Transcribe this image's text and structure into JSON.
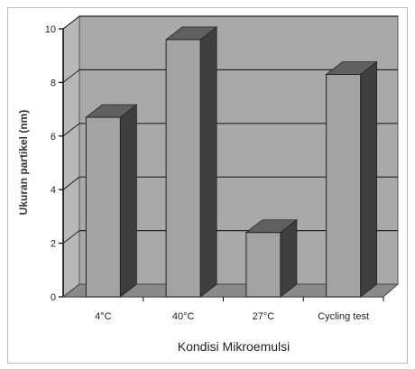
{
  "chart_data": {
    "type": "bar",
    "categories": [
      "4°C",
      "40°C",
      "27°C",
      "Cycling test"
    ],
    "values": [
      6.7,
      9.6,
      2.4,
      8.3
    ],
    "title": "",
    "xlabel": "Kondisi Mikroemulsi",
    "ylabel": "Ukuran partikel (nm)",
    "ylim": [
      0,
      10
    ],
    "yticks": [
      "0",
      "2",
      "4",
      "6",
      "8",
      "10"
    ],
    "grid": true,
    "legend": "none",
    "style": "3d-column"
  },
  "colors": {
    "bar_front": "#a3a3a3",
    "bar_side": "#3f3f3f",
    "bar_top": "#606060",
    "wall": "#a9a9a9",
    "floor": "#8a8a8a",
    "grid": "#222222"
  }
}
